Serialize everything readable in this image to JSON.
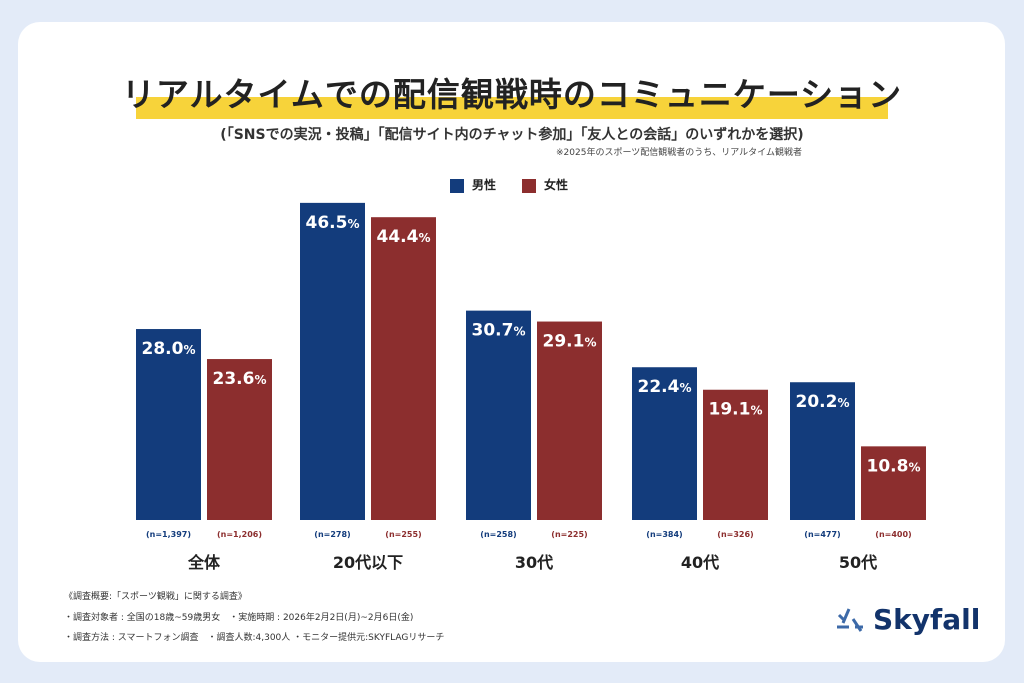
{
  "title": "リアルタイムでの配信観戦時のコミュニケーション",
  "subtitle": "(「SNSでの実況・投稿」「配信サイト内のチャット参加」「友人との会話」のいずれかを選択)",
  "note": "※2025年のスポーツ配信観戦者のうち、リアルタイム観戦者",
  "footer": [
    "《調査概要:「スポーツ観戦」に関する調査》",
    "・調査対象者 : 全国の18歳~59歳男女　・実施時期 : 2026年2月2日(月)~2月6日(金)",
    "・調査方法 : スマートフォン調査　・調査人数:4,300人 ・モニター提供元:SKYFLAGリサーチ"
  ],
  "logo": "Skyfall",
  "colors": {
    "male": "#133c7c",
    "female": "#8c2e2e",
    "highlight": "#f7d33a"
  },
  "chart_data": {
    "type": "bar",
    "categories": [
      "全体",
      "20代以下",
      "30代",
      "40代",
      "50代"
    ],
    "series": [
      {
        "name": "男性",
        "values": [
          28.0,
          46.5,
          30.7,
          22.4,
          20.2
        ],
        "n": [
          "(n=1,397)",
          "(n=278)",
          "(n=258)",
          "(n=384)",
          "(n=477)"
        ]
      },
      {
        "name": "女性",
        "values": [
          23.6,
          44.4,
          29.1,
          19.1,
          10.8
        ],
        "n": [
          "(n=1,206)",
          "(n=255)",
          "(n=225)",
          "(n=326)",
          "(n=400)"
        ]
      }
    ],
    "unit": "%",
    "legend": "top-center",
    "grid": false
  }
}
